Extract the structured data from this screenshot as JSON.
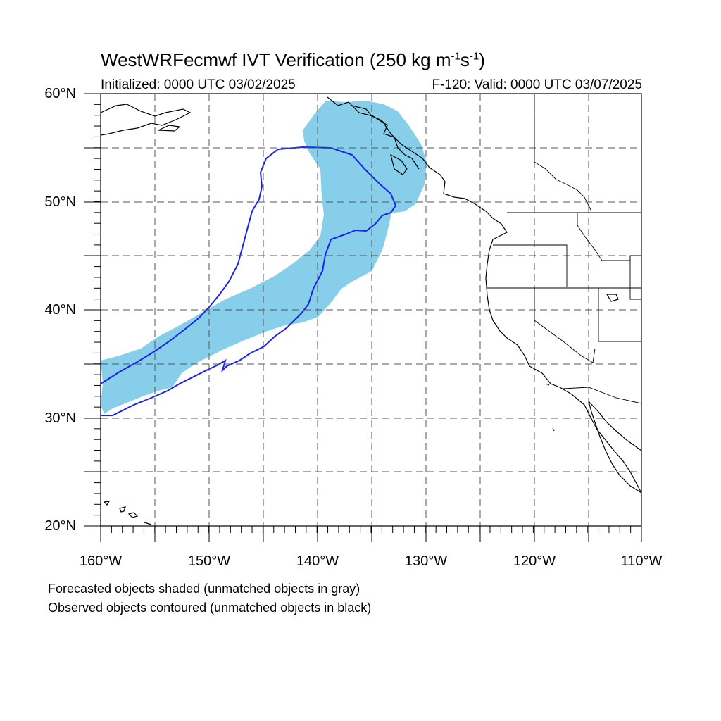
{
  "title": {
    "main": "WestWRFecmwf IVT Verification (250 kg m",
    "sup1": "-1",
    "mid": "s",
    "sup2": "-1",
    "end": ")"
  },
  "subtitle_left": "Initialized: 0000 UTC 03/02/2025",
  "subtitle_right": "F-120: Valid: 0000 UTC 03/07/2025",
  "lat_labels": [
    "60°N",
    "50°N",
    "40°N",
    "30°N",
    "20°N"
  ],
  "lon_labels": [
    "160°W",
    "150°W",
    "140°W",
    "130°W",
    "120°W",
    "110°W"
  ],
  "notes": [
    "Forecasted objects shaded (unmatched objects in gray)",
    "Observed objects contoured (unmatched objects in black)"
  ],
  "colors": {
    "forecast_fill": "#87ceea",
    "observed_contour": "#1a22ee",
    "coastline": "#000000",
    "grid": "#555555"
  },
  "map_extent": {
    "lon": [
      -160,
      -110
    ],
    "lat": [
      20,
      60
    ]
  }
}
